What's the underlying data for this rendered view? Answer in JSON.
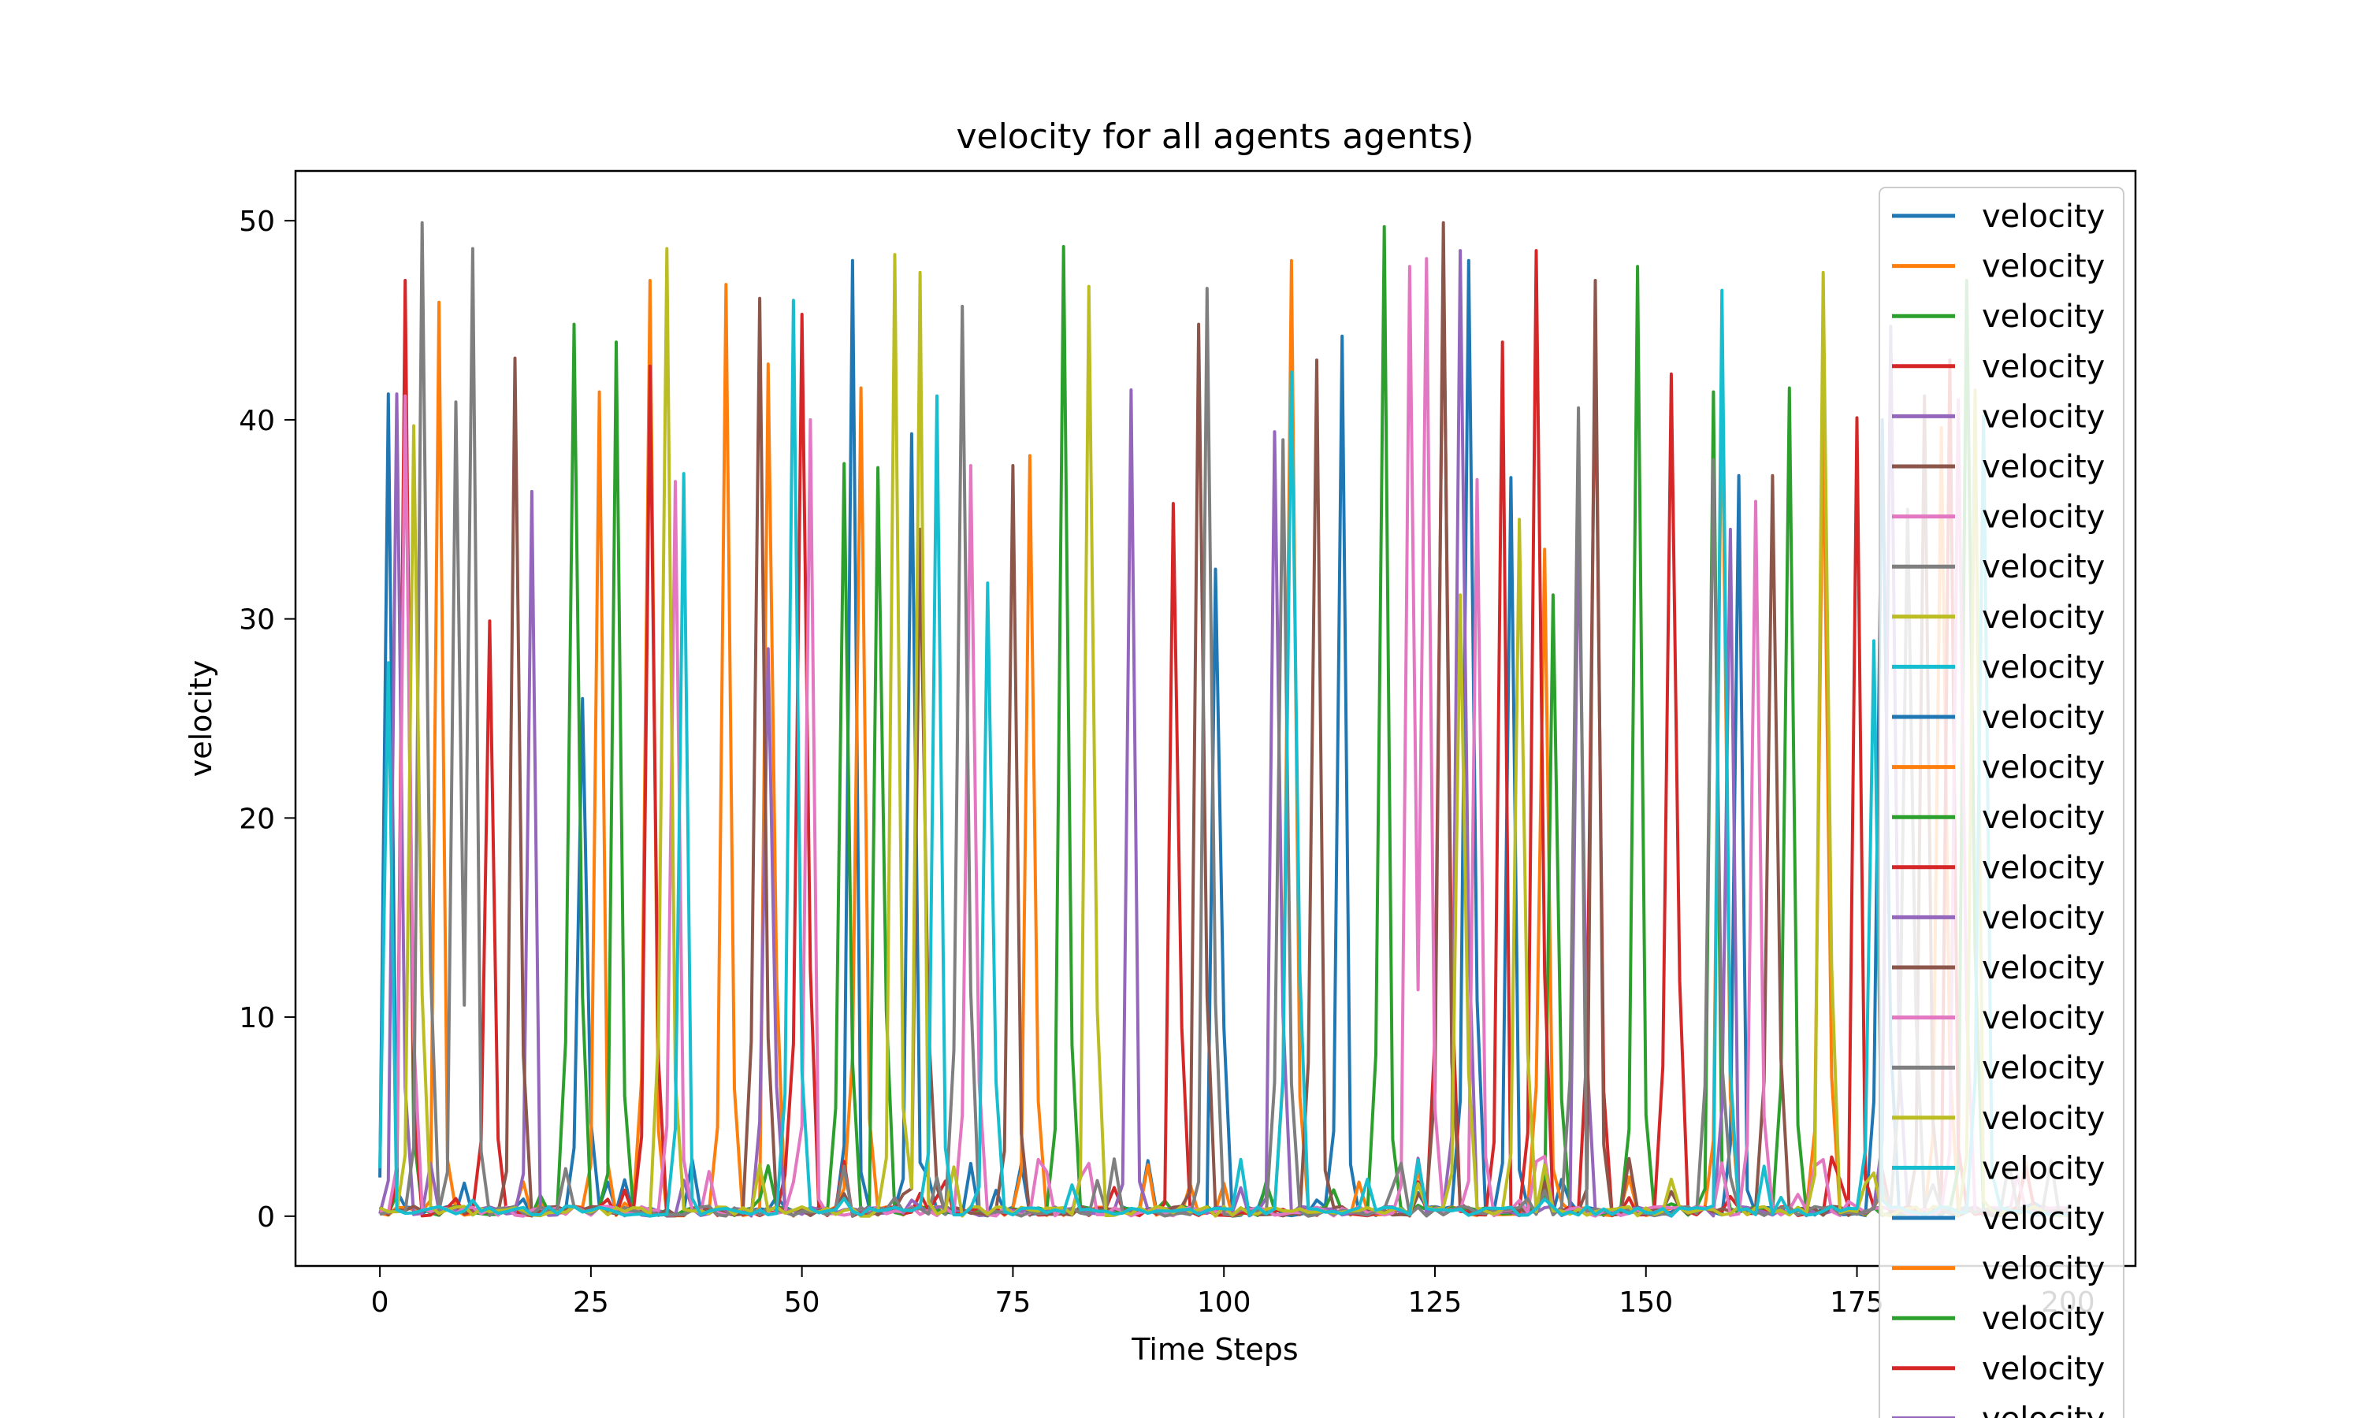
{
  "chart_data": {
    "type": "line",
    "title": "velocity for all agents agents)",
    "xlabel": "Time Steps",
    "ylabel": "velocity",
    "xlim": [
      -10,
      208
    ],
    "ylim": [
      -2.5,
      52.5
    ],
    "xticks": [
      0,
      25,
      50,
      75,
      100,
      125,
      150,
      175,
      200
    ],
    "xtick_labels": [
      "0",
      "25",
      "50",
      "75",
      "100",
      "125",
      "150",
      "175",
      "200"
    ],
    "yticks": [
      0,
      10,
      20,
      30,
      40,
      50
    ],
    "ytick_labels": [
      "0",
      "10",
      "20",
      "30",
      "40",
      "50"
    ],
    "grid": false,
    "legend_position": "top-right",
    "legend_note": "legend overflows below the plot area; 25 entries visible, each labeled velocity",
    "time_steps": 200,
    "colors": [
      "#1f77b4",
      "#ff7f0e",
      "#2ca02c",
      "#d62728",
      "#9467bd",
      "#8c564b",
      "#e377c2",
      "#7f7f7f",
      "#bcbd22",
      "#17becf"
    ],
    "series": [
      {
        "name": "velocity",
        "spikes": [
          [
            1,
            41.3
          ],
          [
            24,
            26.0
          ],
          [
            56,
            48.0
          ],
          [
            63,
            39.3
          ],
          [
            99,
            32.5
          ],
          [
            114,
            44.2
          ],
          [
            129,
            48.0
          ],
          [
            134,
            37.1
          ],
          [
            161,
            37.2
          ],
          [
            178,
            40.0
          ]
        ]
      },
      {
        "name": "velocity",
        "spikes": [
          [
            7,
            45.9
          ],
          [
            26,
            41.4
          ],
          [
            32,
            47.0
          ],
          [
            41,
            46.8
          ],
          [
            46,
            42.8
          ],
          [
            57,
            41.6
          ],
          [
            77,
            38.2
          ],
          [
            108,
            48.0
          ],
          [
            138,
            33.5
          ],
          [
            159,
            42.8
          ],
          [
            171,
            40.3
          ],
          [
            185,
            39.6
          ]
        ]
      },
      {
        "name": "velocity",
        "spikes": [
          [
            3,
            43.9
          ],
          [
            23,
            44.8
          ],
          [
            28,
            43.9
          ],
          [
            55,
            37.8
          ],
          [
            59,
            37.6
          ],
          [
            81,
            48.7
          ],
          [
            119,
            49.7
          ],
          [
            139,
            31.2
          ],
          [
            149,
            47.7
          ],
          [
            158,
            41.4
          ],
          [
            167,
            41.6
          ],
          [
            188,
            47.0
          ]
        ]
      },
      {
        "name": "velocity",
        "spikes": [
          [
            3,
            47.0
          ],
          [
            13,
            29.9
          ],
          [
            32,
            42.7
          ],
          [
            50,
            45.3
          ],
          [
            94,
            35.8
          ],
          [
            126,
            48.3
          ],
          [
            133,
            43.9
          ],
          [
            137,
            48.5
          ],
          [
            144,
            44.3
          ],
          [
            153,
            42.3
          ],
          [
            175,
            40.1
          ],
          [
            186,
            43.0
          ]
        ]
      },
      {
        "name": "velocity",
        "spikes": [
          [
            2,
            41.3
          ],
          [
            18,
            36.4
          ],
          [
            46,
            28.5
          ],
          [
            89,
            41.5
          ],
          [
            106,
            39.4
          ],
          [
            128,
            48.5
          ],
          [
            142,
            35.4
          ],
          [
            160,
            34.5
          ],
          [
            179,
            44.7
          ]
        ]
      },
      {
        "name": "velocity",
        "spikes": [
          [
            16,
            43.1
          ],
          [
            45,
            46.1
          ],
          [
            64,
            34.5
          ],
          [
            75,
            37.7
          ],
          [
            97,
            44.8
          ],
          [
            111,
            43.0
          ],
          [
            126,
            49.9
          ],
          [
            144,
            47.0
          ],
          [
            165,
            37.2
          ],
          [
            183,
            41.2
          ]
        ]
      },
      {
        "name": "velocity",
        "spikes": [
          [
            3,
            41.2
          ],
          [
            35,
            36.9
          ],
          [
            51,
            40.0
          ],
          [
            70,
            37.7
          ],
          [
            122,
            47.7
          ],
          [
            124,
            48.1
          ],
          [
            130,
            37.0
          ],
          [
            163,
            35.9
          ],
          [
            187,
            41.0
          ]
        ]
      },
      {
        "name": "velocity",
        "spikes": [
          [
            5,
            49.9
          ],
          [
            9,
            40.9
          ],
          [
            11,
            48.6
          ],
          [
            69,
            45.7
          ],
          [
            98,
            46.6
          ],
          [
            107,
            39.0
          ],
          [
            142,
            40.6
          ],
          [
            158,
            38.0
          ],
          [
            181,
            35.5
          ]
        ]
      },
      {
        "name": "velocity",
        "spikes": [
          [
            4,
            39.7
          ],
          [
            34,
            48.6
          ],
          [
            61,
            48.3
          ],
          [
            64,
            47.4
          ],
          [
            84,
            46.7
          ],
          [
            128,
            31.2
          ],
          [
            135,
            35.0
          ],
          [
            171,
            47.4
          ],
          [
            189,
            41.5
          ]
        ]
      },
      {
        "name": "velocity",
        "spikes": [
          [
            1,
            27.8
          ],
          [
            36,
            37.3
          ],
          [
            49,
            46.0
          ],
          [
            66,
            41.2
          ],
          [
            72,
            31.8
          ],
          [
            108,
            42.4
          ],
          [
            159,
            46.5
          ],
          [
            177,
            28.9
          ],
          [
            190,
            40.2
          ]
        ]
      }
    ],
    "legend_entries": [
      "velocity",
      "velocity",
      "velocity",
      "velocity",
      "velocity",
      "velocity",
      "velocity",
      "velocity",
      "velocity",
      "velocity",
      "velocity",
      "velocity",
      "velocity",
      "velocity",
      "velocity",
      "velocity",
      "velocity",
      "velocity",
      "velocity",
      "velocity",
      "velocity",
      "velocity",
      "velocity",
      "velocity",
      "velocity"
    ]
  }
}
